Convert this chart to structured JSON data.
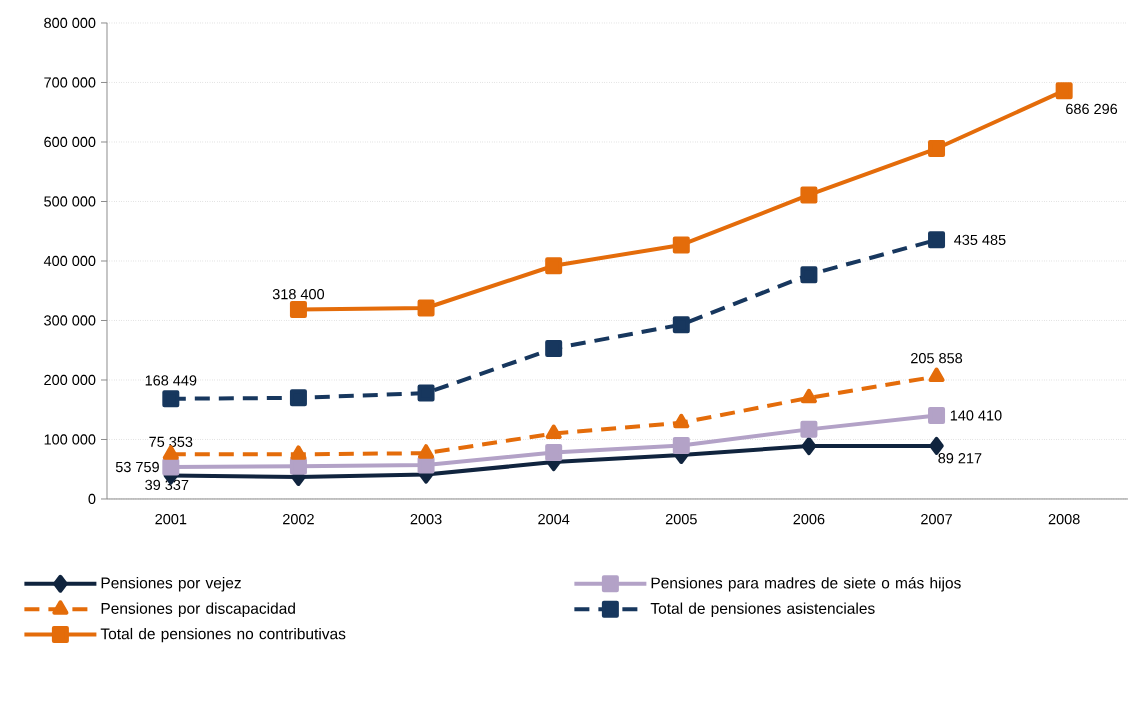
{
  "chart_data": {
    "type": "line",
    "categories": [
      "2001",
      "2002",
      "2003",
      "2004",
      "2005",
      "2006",
      "2007",
      "2008"
    ],
    "ylim": [
      0,
      800000
    ],
    "yticks": [
      {
        "value": 0,
        "label": "0"
      },
      {
        "value": 100000,
        "label": "100 000"
      },
      {
        "value": 200000,
        "label": "200 000"
      },
      {
        "value": 300000,
        "label": "300 000"
      },
      {
        "value": 400000,
        "label": "400 000"
      },
      {
        "value": 500000,
        "label": "500 000"
      },
      {
        "value": 600000,
        "label": "600 000"
      },
      {
        "value": 700000,
        "label": "700 000"
      },
      {
        "value": 800000,
        "label": "800 000"
      }
    ],
    "grid": "y",
    "legend": "bottom",
    "series": [
      {
        "name": "Pensiones por vejez",
        "color": "#10243e",
        "marker": "diamond",
        "line_style": "solid",
        "values": [
          39337,
          37000,
          41000,
          62000,
          74000,
          89000,
          89217,
          null
        ],
        "value_labels": [
          "39 337",
          null,
          null,
          null,
          null,
          null,
          "89 217",
          null
        ]
      },
      {
        "name": "Pensiones para madres de siete o más hijos",
        "color": "#b3a2c7",
        "marker": "square",
        "line_style": "solid",
        "values": [
          53759,
          55000,
          57000,
          78000,
          90000,
          117000,
          140410,
          null
        ],
        "value_labels": [
          "53 759",
          null,
          null,
          null,
          null,
          null,
          "140 410",
          null
        ]
      },
      {
        "name": "Pensiones por discapacidad",
        "color": "#e46c0a",
        "marker": "triangle",
        "line_style": "dashed",
        "values": [
          75353,
          75000,
          77000,
          110000,
          128000,
          170000,
          205858,
          null
        ],
        "value_labels": [
          "75 353",
          null,
          null,
          null,
          null,
          null,
          "205 858",
          null
        ]
      },
      {
        "name": "Total de pensiones asistenciales",
        "color": "#17375e",
        "marker": "square",
        "line_style": "dashed",
        "values": [
          168449,
          170000,
          178000,
          253000,
          293000,
          377000,
          435485,
          null
        ],
        "value_labels": [
          "168 449",
          null,
          null,
          null,
          null,
          null,
          "435 485",
          null
        ]
      },
      {
        "name": "Total de pensiones no contributivas",
        "color": "#e46c0a",
        "marker": "square",
        "line_style": "solid",
        "values": [
          null,
          318400,
          321000,
          392000,
          427000,
          511000,
          589000,
          686296
        ],
        "value_labels": [
          null,
          "318 400",
          null,
          null,
          null,
          null,
          null,
          "686 296"
        ]
      }
    ]
  }
}
